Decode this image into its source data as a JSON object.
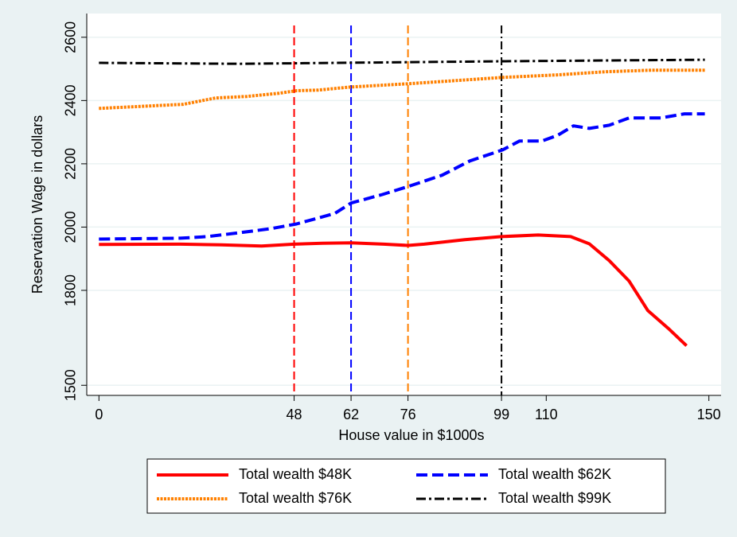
{
  "chart_data": {
    "type": "line",
    "xlabel": "House value in $1000s",
    "ylabel": "Reservation Wage in dollars",
    "xlim": [
      -3,
      153
    ],
    "ylim": [
      1468,
      2675
    ],
    "xticks": [
      0,
      48,
      62,
      76,
      99,
      110,
      150
    ],
    "yticks": [
      1500,
      1800,
      2000,
      2200,
      2400,
      2600
    ],
    "grid": true,
    "series": [
      {
        "name": "Total wealth $48K",
        "color": "#ff0000",
        "dash": "solid",
        "x": [
          0,
          20,
          30,
          40,
          48,
          55,
          62,
          70,
          76,
          80,
          90,
          99,
          108,
          116,
          120.6,
          125.5,
          130.4,
          135,
          140,
          144.5
        ],
        "values": [
          1945,
          1946,
          1944,
          1940,
          1946,
          1949,
          1950,
          1946,
          1942,
          1946,
          1960,
          1970,
          1975,
          1970,
          1947,
          1894,
          1829,
          1736,
          1680,
          1625
        ]
      },
      {
        "name": "Total wealth $62K",
        "color": "#0000ff",
        "dash": "dash",
        "x": [
          0,
          20,
          26.6,
          34.5,
          42.3,
          48.6,
          58,
          62,
          69.7,
          76,
          84.4,
          91.2,
          99.3,
          103.4,
          108.9,
          112.8,
          116.7,
          120.6,
          125.5,
          130.4,
          138.2,
          144,
          149
        ],
        "values": [
          1962,
          1965,
          1970,
          1982,
          1995,
          2010,
          2043,
          2076,
          2103,
          2128,
          2164,
          2209,
          2244,
          2272,
          2272,
          2290,
          2320,
          2312,
          2322,
          2345,
          2345,
          2358,
          2358
        ]
      },
      {
        "name": "Total wealth $76K",
        "color": "#ff8000",
        "dash": "dot",
        "x": [
          0,
          20.8,
          28.6,
          36.4,
          44.3,
          48.6,
          54,
          62,
          76,
          85.4,
          99.3,
          112.8,
          124.5,
          136,
          149
        ],
        "values": [
          2375,
          2388,
          2408,
          2413,
          2423,
          2431,
          2433,
          2443,
          2453,
          2461,
          2473,
          2481,
          2491,
          2496,
          2496
        ]
      },
      {
        "name": "Total wealth $99K",
        "color": "#000000",
        "dash": "dash-dot",
        "x": [
          0,
          34.5,
          99.3,
          149
        ],
        "values": [
          2519,
          2516,
          2524,
          2529
        ]
      }
    ],
    "reference_lines": [
      {
        "x": 48,
        "color": "#ff0000",
        "dash": "dash"
      },
      {
        "x": 62,
        "color": "#0000ff",
        "dash": "dash"
      },
      {
        "x": 76,
        "color": "#ff8000",
        "dash": "dash"
      },
      {
        "x": 99,
        "color": "#000000",
        "dash": "dash-dot"
      }
    ]
  }
}
